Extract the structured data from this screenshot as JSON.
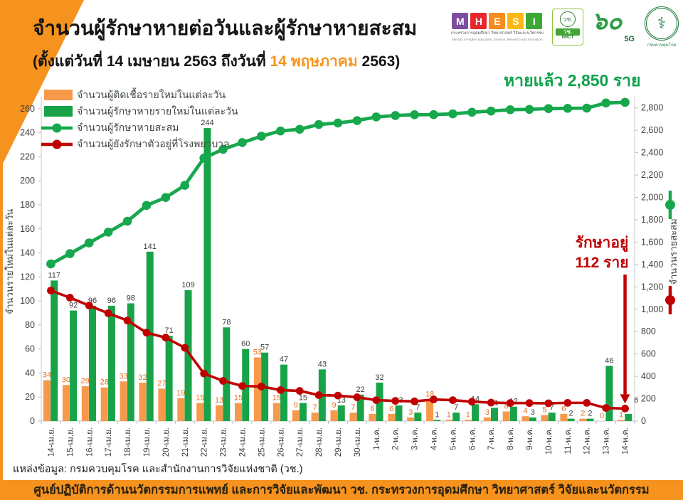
{
  "header": {
    "title": "จำนวนผู้รักษาหายต่อวันและผู้รักษาหายสะสม",
    "subtitle_prefix": "(ตั้งแต่วันที่ 14 เมษายน 2563 ถึงวันที่ ",
    "subtitle_highlight": "14 พฤษภาคม",
    "subtitle_suffix": " 2563)"
  },
  "logos": {
    "mhesi_letters": [
      "M",
      "H",
      "E",
      "S",
      "I"
    ],
    "mhesi_colors": [
      "#7C4E9F",
      "#E8262D",
      "#F68B1F",
      "#FDB813",
      "#3BAA35"
    ],
    "mhesi_caption_th": "กระทรวงการอุดมศึกษา วิทยาศาสตร์ วิจัยและนวัตกรรม",
    "mhesi_caption_en": "Ministry of Higher Education, Science, Research and Innovation",
    "nrct_emblem": "วช.",
    "nrct_band": "วช.",
    "nrct_sub": "NRCT",
    "sixty_num": "๖๐",
    "sixty_5g": "5G",
    "ddc_icon": "⚕",
    "ddc_caption": "กรมควบคุมโรค"
  },
  "annotations": {
    "recovered_total": "หายแล้ว 2,850 ราย",
    "in_hospital_line1": "รักษาอยู่",
    "in_hospital_line2": "112 ราย"
  },
  "chart_data": {
    "type": "bar+line combo",
    "title": "จำนวนผู้รักษาหายต่อวันและผู้รักษาหายสะสม (14 เม.ย. 2563 – 14 พ.ค. 2563)",
    "grid": false,
    "legend_position": "top-left inside plot",
    "categories": [
      "14-เม.ย.",
      "15-เม.ย.",
      "16-เม.ย.",
      "17-เม.ย.",
      "18-เม.ย.",
      "19-เม.ย.",
      "20-เม.ย.",
      "21-เม.ย.",
      "22-เม.ย.",
      "23-เม.ย.",
      "24-เม.ย.",
      "25-เม.ย.",
      "26-เม.ย.",
      "27-เม.ย.",
      "28-เม.ย.",
      "29-เม.ย.",
      "30-เม.ย.",
      "1-พ.ค.",
      "2-พ.ค.",
      "3-พ.ค.",
      "4-พ.ค.",
      "5-พ.ค.",
      "6-พ.ค.",
      "7-พ.ค.",
      "8-พ.ค.",
      "9-พ.ค.",
      "10-พ.ค.",
      "11-พ.ค.",
      "12-พ.ค.",
      "13-พ.ค.",
      "14-พ.ค."
    ],
    "series": [
      {
        "name": "จำนวนผู้ติดเชื้อรายใหม่ในแต่ละวัน",
        "type": "bar",
        "axis": "left",
        "color": "#F7994A",
        "label_color": "#E4701E",
        "values": [
          34,
          30,
          29,
          28,
          33,
          32,
          27,
          19,
          15,
          13,
          15,
          53,
          15,
          9,
          7,
          9,
          7,
          6,
          6,
          3,
          18,
          1,
          1,
          3,
          8,
          4,
          5,
          6,
          2,
          0,
          1
        ]
      },
      {
        "name": "จำนวนผู้รักษาหายรายใหม่ในแต่ละวัน",
        "type": "bar",
        "axis": "left",
        "color": "#18A349",
        "label_color": "#3C3C3C",
        "values": [
          117,
          92,
          96,
          96,
          98,
          141,
          71,
          109,
          244,
          78,
          60,
          57,
          47,
          15,
          43,
          13,
          22,
          32,
          13,
          7,
          1,
          7,
          14,
          11,
          12,
          3,
          7,
          2,
          2,
          46,
          6
        ]
      },
      {
        "name": "จำนวนผู้รักษาหายสะสม",
        "type": "line",
        "axis": "right",
        "color": "#17A74C",
        "values": [
          1405,
          1497,
          1593,
          1689,
          1787,
          1928,
          1999,
          2108,
          2352,
          2430,
          2490,
          2547,
          2594,
          2609,
          2652,
          2665,
          2687,
          2719,
          2732,
          2739,
          2740,
          2747,
          2761,
          2772,
          2784,
          2787,
          2794,
          2796,
          2798,
          2844,
          2850
        ]
      },
      {
        "name": "จำนวนผู้ยังรักษาตัวอยู่ที่โรงพยาบาล",
        "type": "line",
        "axis": "right",
        "color": "#C00000",
        "values": [
          1167,
          1103,
          1033,
          964,
          899,
          790,
          746,
          655,
          425,
          359,
          314,
          309,
          277,
          270,
          232,
          228,
          213,
          187,
          180,
          176,
          193,
          187,
          173,
          165,
          161,
          161,
          159,
          163,
          163,
          117,
          112
        ]
      }
    ],
    "left_axis": {
      "label": "จำนวนรายใหม่ในแต่ละวัน",
      "min": 0,
      "max": 270,
      "tick_step": 20,
      "tick_max": 260
    },
    "right_axis": {
      "label": "จำนวนรายสะสม",
      "min": 0,
      "max": 2900,
      "tick_step": 200,
      "tick_max": 2800
    }
  },
  "source": "แหล่งข้อมูล: กรมควบคุมโรค และสำนักงานการวิจัยแห่งชาติ (วช.)",
  "footer": "ศูนย์ปฏิบัติการด้านนวัตกรรมการแพทย์ และการวิจัยและพัฒนา   วช.   กระทรวงการอุดมศึกษา วิทยาศาสตร์ วิจัยและนวัตกรรม",
  "colors": {
    "accent_orange": "#F6921E",
    "bar_orange": "#F7994A",
    "bar_green": "#18A349",
    "line_green": "#17A74C",
    "line_red": "#C00000",
    "annotation_green": "#0EA24D"
  }
}
